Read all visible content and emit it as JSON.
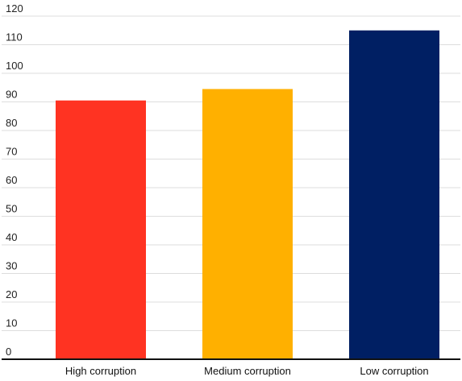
{
  "chart_data": {
    "type": "bar",
    "title": "",
    "xlabel": "",
    "ylabel": "",
    "categories": [
      "High corruption",
      "Medium corruption",
      "Low corruption"
    ],
    "values": [
      90.5,
      94.5,
      115
    ],
    "colors": [
      "#ff3322",
      "#ffb000",
      "#001f63"
    ],
    "ylim": [
      0,
      120
    ],
    "yticks": [
      0,
      10,
      20,
      30,
      40,
      50,
      60,
      70,
      80,
      90,
      100,
      110,
      120
    ],
    "ytick_labels": [
      "0",
      "10",
      "20",
      "30",
      "40",
      "50",
      "60",
      "70",
      "80",
      "90",
      "100",
      "110",
      "120"
    ],
    "grid": true,
    "legend": false
  }
}
